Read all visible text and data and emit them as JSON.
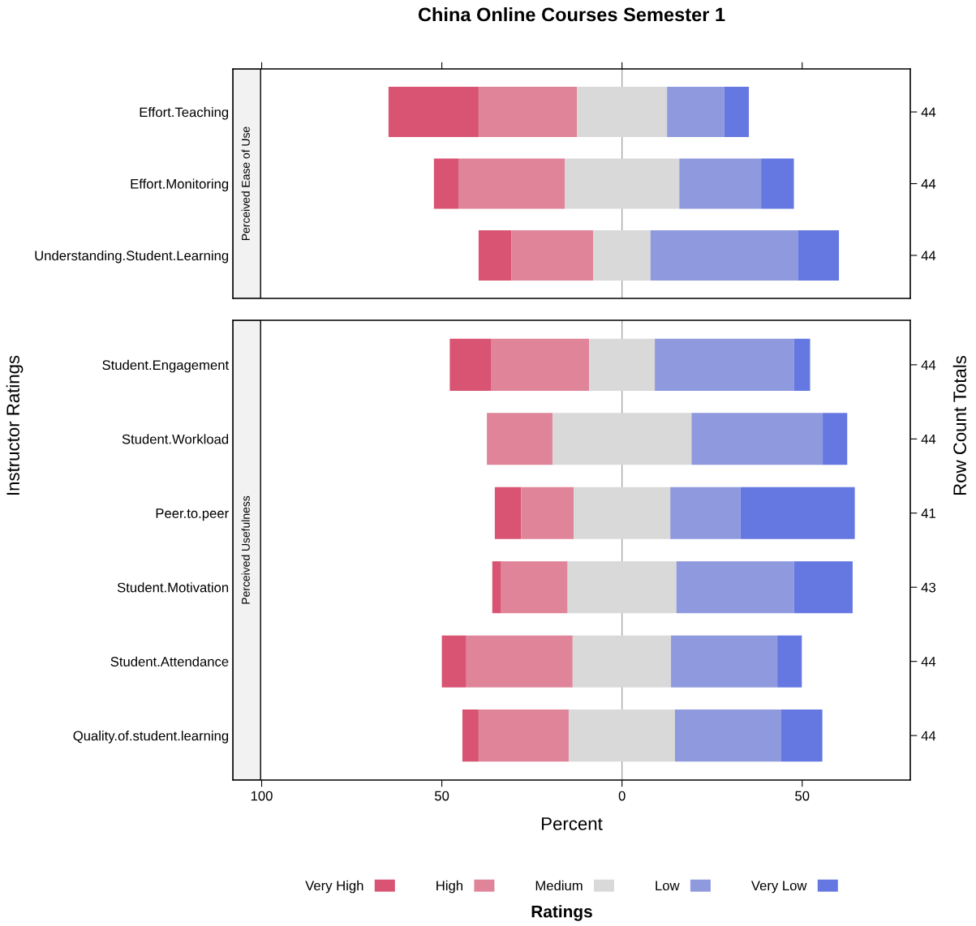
{
  "chart_data": [
    {
      "type": "bar",
      "orientation": "horizontal",
      "title": "China Online Courses Semester 1",
      "ylabel": "Instructor Ratings",
      "y2label": "Row Count Totals",
      "annotations": [
        "Perceived Ease of Use"
      ],
      "tick_labels": "y",
      "grid": false,
      "categories": [
        "Effort.Teaching",
        "Effort.Monitoring",
        "Understanding.Student.Learning"
      ],
      "y2_categories": [
        "44",
        "44",
        "44"
      ],
      "xlim": [
        -108,
        80
      ],
      "xticks": [
        {
          "value": -100,
          "label": null
        },
        {
          "value": -50,
          "label": null
        },
        {
          "value": 0,
          "label": null
        },
        {
          "value": 50,
          "label": null
        }
      ],
      "ref_lines": [
        {
          "axis": "x",
          "value": 0,
          "color": "#a6a6a6"
        }
      ],
      "series": [
        {
          "color": "#d85472",
          "base": [
            -64.8,
            -52.2,
            -39.8
          ],
          "values": [
            25.0,
            6.8,
            9.1
          ]
        },
        {
          "color": "#df8499",
          "base": [
            -39.8,
            -45.4,
            -30.7
          ],
          "values": [
            27.3,
            29.5,
            22.7
          ]
        },
        {
          "color": "#d9d9d9",
          "base": [
            -12.5,
            -15.9,
            -8.0
          ],
          "values": [
            25.0,
            31.8,
            15.9
          ]
        },
        {
          "color": "#8f99dd",
          "base": [
            12.5,
            15.9,
            7.9
          ],
          "values": [
            15.9,
            22.7,
            40.9
          ]
        },
        {
          "color": "#6577e0",
          "base": [
            28.4,
            38.6,
            48.8
          ],
          "values": [
            6.8,
            9.1,
            11.4
          ]
        }
      ]
    },
    {
      "type": "bar",
      "orientation": "horizontal",
      "xlabel": "Percent",
      "legend_title": "Ratings",
      "legend": "bottom",
      "annotations": [
        "Perceived Usefulness"
      ],
      "grid": false,
      "categories": [
        "Student.Engagement",
        "Student.Workload",
        "Peer.to.peer",
        "Student.Motivation",
        "Student.Attendance",
        "Quality.of.student.learning"
      ],
      "y2_categories": [
        "44",
        "44",
        "41",
        "43",
        "44",
        "44"
      ],
      "xlim": [
        -108,
        80
      ],
      "xticks": [
        {
          "value": -100,
          "label": "100"
        },
        {
          "value": -50,
          "label": "50"
        },
        0,
        50
      ],
      "ref_lines": [
        {
          "axis": "x",
          "value": 0,
          "color": "#a6a6a6"
        }
      ],
      "series": [
        {
          "name": "Very High",
          "color": "#d85472",
          "base": [
            -47.8,
            null,
            -35.3,
            -36.0,
            -50.0,
            -44.3
          ],
          "values": [
            11.4,
            null,
            7.3,
            2.3,
            6.8,
            4.5
          ]
        },
        {
          "name": "High",
          "color": "#df8499",
          "base": [
            -36.4,
            -37.5,
            -28.0,
            -33.7,
            -43.2,
            -39.8
          ],
          "values": [
            27.3,
            18.2,
            14.6,
            18.6,
            29.5,
            25.0
          ]
        },
        {
          "name": "Medium",
          "color": "#d9d9d9",
          "base": [
            -9.1,
            -19.3,
            -13.4,
            -15.1,
            -13.7,
            -14.8
          ],
          "values": [
            18.2,
            38.6,
            26.8,
            30.2,
            27.3,
            29.5
          ]
        },
        {
          "name": "Low",
          "color": "#8f99dd",
          "base": [
            9.1,
            19.3,
            13.4,
            15.1,
            13.6,
            14.7
          ],
          "values": [
            38.6,
            36.4,
            19.5,
            32.6,
            29.5,
            29.5
          ]
        },
        {
          "name": "Very Low",
          "color": "#6577e0",
          "base": [
            47.7,
            55.7,
            32.9,
            47.7,
            43.1,
            44.2
          ],
          "values": [
            4.5,
            6.8,
            31.7,
            16.3,
            6.8,
            11.4
          ]
        }
      ]
    }
  ]
}
